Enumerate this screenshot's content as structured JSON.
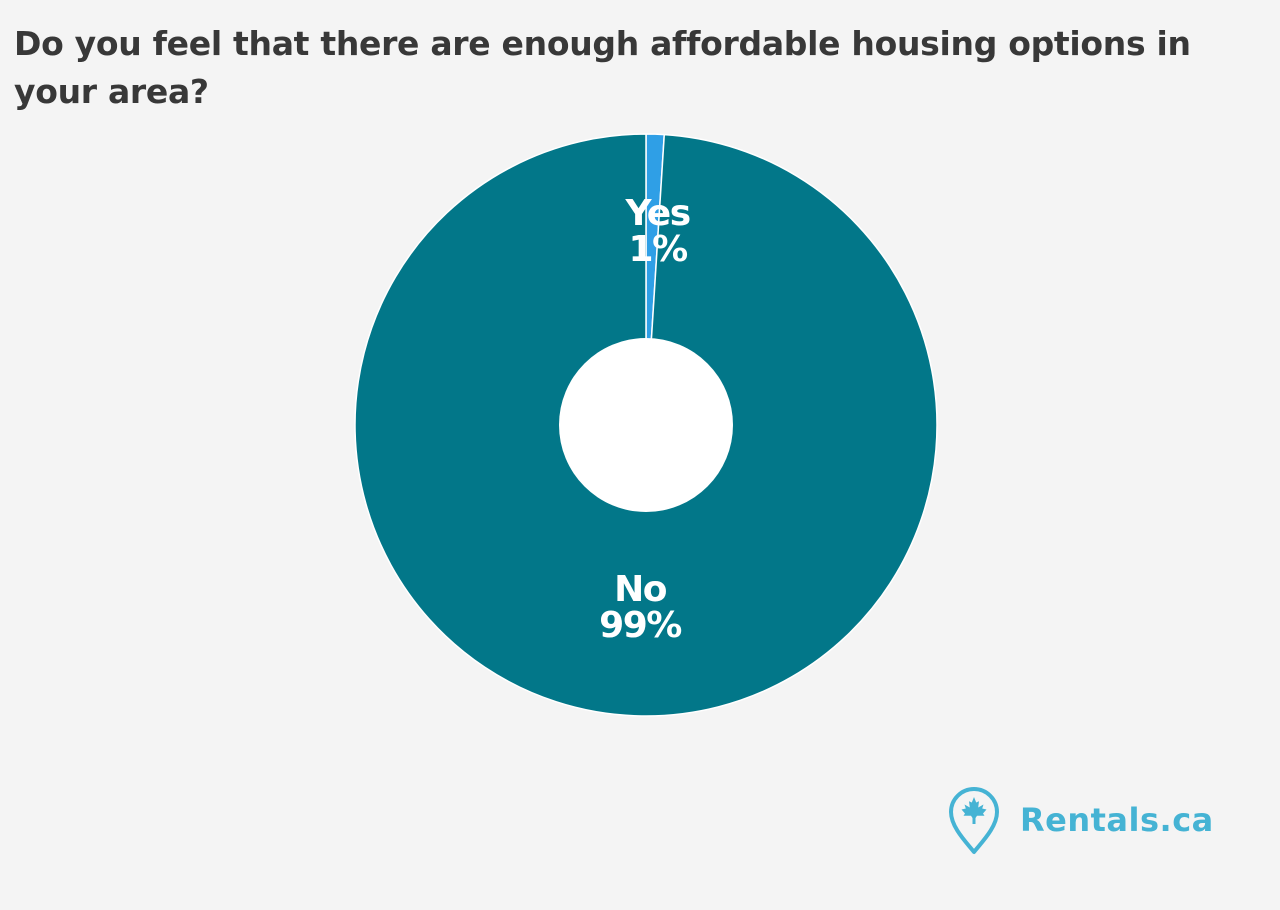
{
  "chart_data": {
    "type": "pie",
    "variant": "donut",
    "title": "Do you feel that there are enough affordable housing options in your area?",
    "slices": [
      {
        "label": "Yes",
        "value": 1,
        "value_label": "1%",
        "color": "#2f9fe6"
      },
      {
        "label": "No",
        "value": 99,
        "value_label": "99%",
        "color": "#027789"
      }
    ],
    "legend": "none"
  },
  "branding": {
    "logo_text": "Rentals.ca",
    "logo_color": "#45b3d4"
  },
  "colors": {
    "background": "#f4f4f4",
    "title": "#383838",
    "label": "#ffffff",
    "hole": "#ffffff"
  }
}
